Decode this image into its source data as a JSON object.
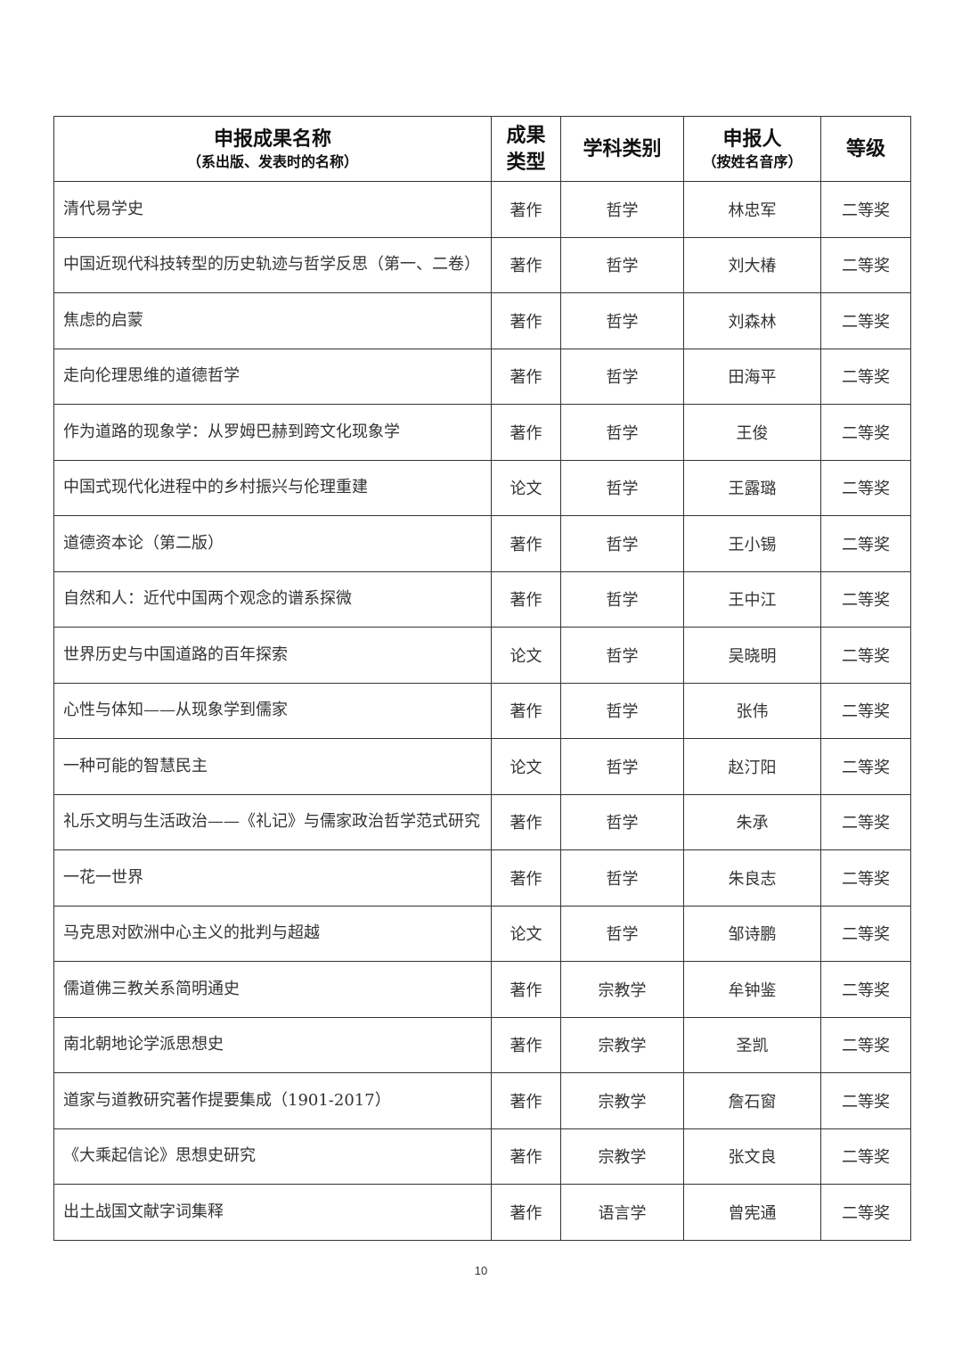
{
  "table": {
    "headers": {
      "name": "申报成果名称",
      "name_sub": "（系出版、发表时的名称）",
      "type": "成果类型",
      "discipline": "学科类别",
      "applicant": "申报人",
      "applicant_sub": "（按姓名音序）",
      "grade": "等级"
    },
    "rows": [
      {
        "name": "清代易学史",
        "type": "著作",
        "discipline": "哲学",
        "applicant": "林忠军",
        "grade": "二等奖"
      },
      {
        "name": "中国近现代科技转型的历史轨迹与哲学反思（第一、二卷）",
        "type": "著作",
        "discipline": "哲学",
        "applicant": "刘大椿",
        "grade": "二等奖"
      },
      {
        "name": "焦虑的启蒙",
        "type": "著作",
        "discipline": "哲学",
        "applicant": "刘森林",
        "grade": "二等奖"
      },
      {
        "name": "走向伦理思维的道德哲学",
        "type": "著作",
        "discipline": "哲学",
        "applicant": "田海平",
        "grade": "二等奖"
      },
      {
        "name": "作为道路的现象学：从罗姆巴赫到跨文化现象学",
        "type": "著作",
        "discipline": "哲学",
        "applicant": "王俊",
        "grade": "二等奖"
      },
      {
        "name": "中国式现代化进程中的乡村振兴与伦理重建",
        "type": "论文",
        "discipline": "哲学",
        "applicant": "王露璐",
        "grade": "二等奖"
      },
      {
        "name": "道德资本论（第二版）",
        "type": "著作",
        "discipline": "哲学",
        "applicant": "王小锡",
        "grade": "二等奖"
      },
      {
        "name": "自然和人：近代中国两个观念的谱系探微",
        "type": "著作",
        "discipline": "哲学",
        "applicant": "王中江",
        "grade": "二等奖"
      },
      {
        "name": "世界历史与中国道路的百年探索",
        "type": "论文",
        "discipline": "哲学",
        "applicant": "吴晓明",
        "grade": "二等奖"
      },
      {
        "name": "心性与体知——从现象学到儒家",
        "type": "著作",
        "discipline": "哲学",
        "applicant": "张伟",
        "grade": "二等奖"
      },
      {
        "name": "一种可能的智慧民主",
        "type": "论文",
        "discipline": "哲学",
        "applicant": "赵汀阳",
        "grade": "二等奖"
      },
      {
        "name": "礼乐文明与生活政治——《礼记》与儒家政治哲学范式研究",
        "type": "著作",
        "discipline": "哲学",
        "applicant": "朱承",
        "grade": "二等奖"
      },
      {
        "name": "一花一世界",
        "type": "著作",
        "discipline": "哲学",
        "applicant": "朱良志",
        "grade": "二等奖"
      },
      {
        "name": "马克思对欧洲中心主义的批判与超越",
        "type": "论文",
        "discipline": "哲学",
        "applicant": "邹诗鹏",
        "grade": "二等奖"
      },
      {
        "name": "儒道佛三教关系简明通史",
        "type": "著作",
        "discipline": "宗教学",
        "applicant": "牟钟鉴",
        "grade": "二等奖"
      },
      {
        "name": "南北朝地论学派思想史",
        "type": "著作",
        "discipline": "宗教学",
        "applicant": "圣凯",
        "grade": "二等奖"
      },
      {
        "name": "道家与道教研究著作提要集成（1901-2017）",
        "type": "著作",
        "discipline": "宗教学",
        "applicant": "詹石窗",
        "grade": "二等奖"
      },
      {
        "name": "《大乘起信论》思想史研究",
        "type": "著作",
        "discipline": "宗教学",
        "applicant": "张文良",
        "grade": "二等奖"
      },
      {
        "name": "出土战国文献字词集释",
        "type": "著作",
        "discipline": "语言学",
        "applicant": "曾宪通",
        "grade": "二等奖"
      }
    ]
  },
  "page_number": "10"
}
